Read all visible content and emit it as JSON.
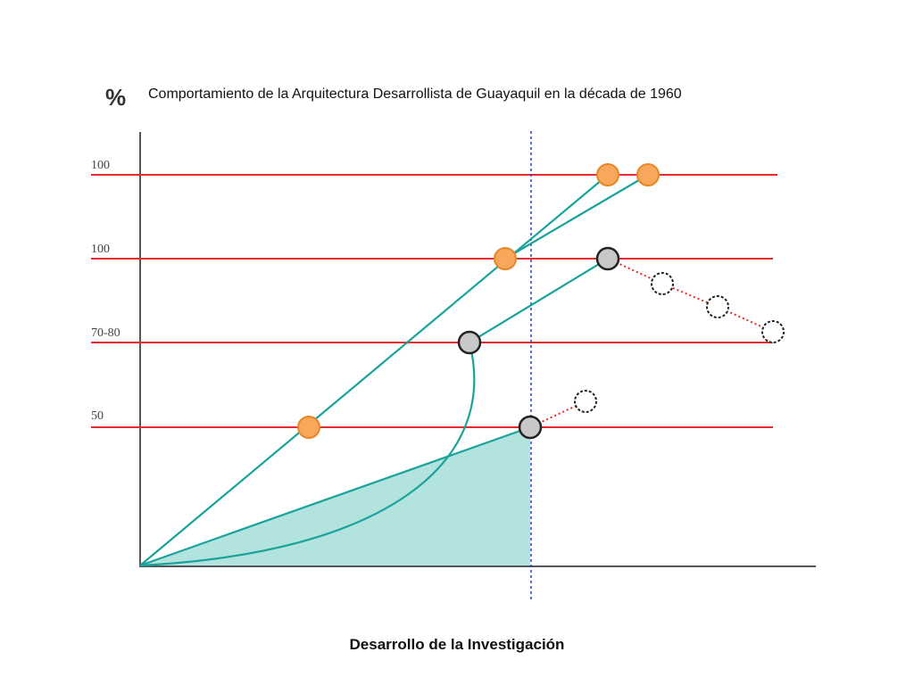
{
  "chart_data": {
    "type": "line",
    "title": "Comportamiento de la Arquitectura Desarrollista de Guayaquil en la década de 1960",
    "ylabel": "%",
    "xlabel": "Desarrollo de la Investigación",
    "y_tick_labels": [
      "100",
      "100",
      "70-80",
      "50"
    ],
    "grid": false,
    "colors": {
      "reference_lines": "#e52b2b",
      "trend_lines": "#1aa39a",
      "area_fill": "#b3e3df",
      "divider": "#2a3fc9",
      "marker_highlight": "#f7a85a",
      "marker_highlight_edge": "#e8862a",
      "marker_current": "#c8c8c8",
      "marker_current_edge": "#222222",
      "projection": "#e52b2b"
    }
  }
}
